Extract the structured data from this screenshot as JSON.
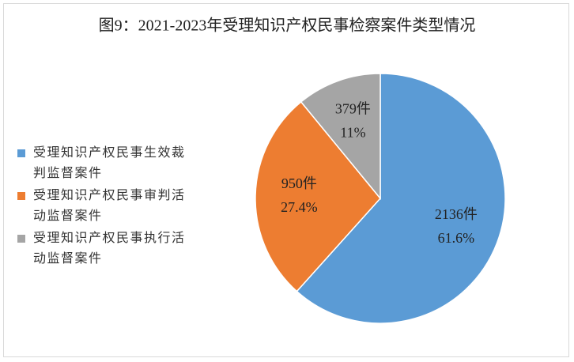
{
  "chart_data": {
    "type": "pie",
    "title": "图9：2021-2023年受理知识产权民事检察案件类型情况",
    "categories": [
      "受理知识产权民事生效裁判监督案件",
      "受理知识产权民事审判活动监督案件",
      "受理知识产权民事执行活动监督案件"
    ],
    "values": [
      2136,
      950,
      379
    ],
    "value_labels": [
      "2136件",
      "950件",
      "379件"
    ],
    "percents": [
      61.6,
      27.4,
      11
    ],
    "percent_labels": [
      "61.6%",
      "27.4%",
      "11%"
    ],
    "colors": [
      "#5b9bd5",
      "#ed7d31",
      "#a5a5a5"
    ],
    "legend": "left"
  }
}
